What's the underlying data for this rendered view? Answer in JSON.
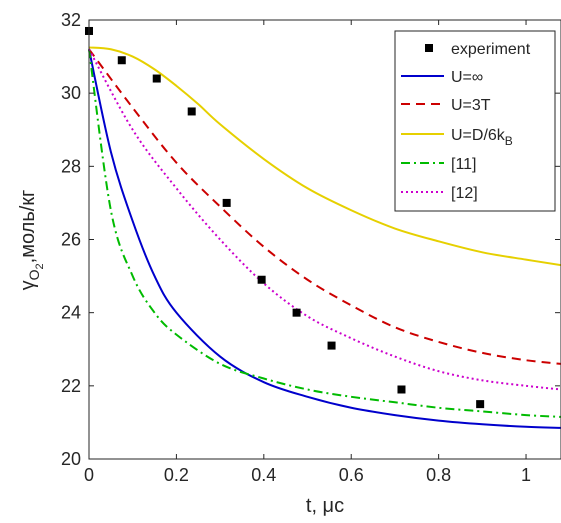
{
  "chart_data": {
    "type": "line",
    "xlabel": "t, μс",
    "ylabel_main": "γ",
    "ylabel_sub": "O",
    "ylabel_subsub": "2",
    "ylabel_rest": ",моль/кг",
    "xlim": [
      0,
      1.08
    ],
    "ylim": [
      20,
      32
    ],
    "xticks": [
      0,
      0.2,
      0.4,
      0.6,
      0.8,
      1
    ],
    "xtick_labels": [
      "0",
      "0.2",
      "0.4",
      "0.6",
      "0.8",
      "1"
    ],
    "yticks": [
      20,
      22,
      24,
      26,
      28,
      30,
      32
    ],
    "ytick_labels": [
      "20",
      "22",
      "24",
      "26",
      "28",
      "30",
      "32"
    ],
    "grid": false,
    "legend_position": "top-right",
    "experiment": {
      "name": "experiment",
      "marker": "square",
      "color": "#000000",
      "x": [
        0,
        0.075,
        0.155,
        0.235,
        0.315,
        0.395,
        0.475,
        0.555,
        0.715,
        0.895
      ],
      "y": [
        31.7,
        30.9,
        30.4,
        29.5,
        27.0,
        24.9,
        24.0,
        23.1,
        21.9,
        21.5
      ]
    },
    "series": [
      {
        "name": "U=∞",
        "color": "#0000cc",
        "dash": "solid",
        "x": [
          0,
          0.05,
          0.1,
          0.15,
          0.2,
          0.3,
          0.4,
          0.5,
          0.6,
          0.7,
          0.8,
          0.9,
          1.0,
          1.08
        ],
        "y": [
          31.2,
          28.4,
          26.5,
          25.0,
          24.0,
          22.8,
          22.1,
          21.7,
          21.4,
          21.2,
          21.05,
          20.95,
          20.88,
          20.85
        ]
      },
      {
        "name": "U=3T",
        "color": "#cc0000",
        "dash": "dashed",
        "x": [
          0,
          0.1,
          0.2,
          0.3,
          0.4,
          0.5,
          0.6,
          0.7,
          0.8,
          0.9,
          1.0,
          1.08
        ],
        "y": [
          31.2,
          29.6,
          28.1,
          26.9,
          25.8,
          24.9,
          24.2,
          23.6,
          23.2,
          22.9,
          22.7,
          22.6
        ]
      },
      {
        "name": "U=D/6k_B",
        "color": "#e6d000",
        "dash": "solid",
        "x": [
          0,
          0.05,
          0.1,
          0.15,
          0.2,
          0.25,
          0.3,
          0.4,
          0.5,
          0.6,
          0.7,
          0.8,
          0.9,
          1.0,
          1.08
        ],
        "y": [
          31.25,
          31.2,
          31.0,
          30.65,
          30.2,
          29.7,
          29.15,
          28.2,
          27.4,
          26.8,
          26.3,
          25.95,
          25.65,
          25.45,
          25.3
        ]
      },
      {
        "name": "[11]",
        "color": "#00bb00",
        "dash": "dashdot",
        "x": [
          0,
          0.05,
          0.1,
          0.15,
          0.2,
          0.3,
          0.4,
          0.5,
          0.6,
          0.7,
          0.8,
          0.9,
          1.0,
          1.08
        ],
        "y": [
          31.2,
          26.8,
          25.0,
          24.0,
          23.4,
          22.6,
          22.2,
          21.9,
          21.7,
          21.55,
          21.4,
          21.3,
          21.2,
          21.15
        ]
      },
      {
        "name": "[12]",
        "color": "#cc00cc",
        "dash": "dotted",
        "x": [
          0,
          0.1,
          0.2,
          0.3,
          0.4,
          0.5,
          0.6,
          0.7,
          0.8,
          0.9,
          1.0,
          1.08
        ],
        "y": [
          31.2,
          29.0,
          27.4,
          26.0,
          24.8,
          23.9,
          23.3,
          22.8,
          22.4,
          22.15,
          22.0,
          21.9
        ]
      }
    ],
    "legend": [
      {
        "label": "experiment",
        "kind": "marker",
        "color": "#000000",
        "dash": "none"
      },
      {
        "label": "U=∞",
        "kind": "line",
        "color": "#0000cc",
        "dash": "solid"
      },
      {
        "label": "U=3T",
        "kind": "line",
        "color": "#cc0000",
        "dash": "dashed"
      },
      {
        "label": "U=D/6k",
        "sub": "B",
        "kind": "line",
        "color": "#e6d000",
        "dash": "solid"
      },
      {
        "label": "[11]",
        "kind": "line",
        "color": "#00bb00",
        "dash": "dashdot"
      },
      {
        "label": "[12]",
        "kind": "line",
        "color": "#cc00cc",
        "dash": "dotted"
      }
    ]
  }
}
